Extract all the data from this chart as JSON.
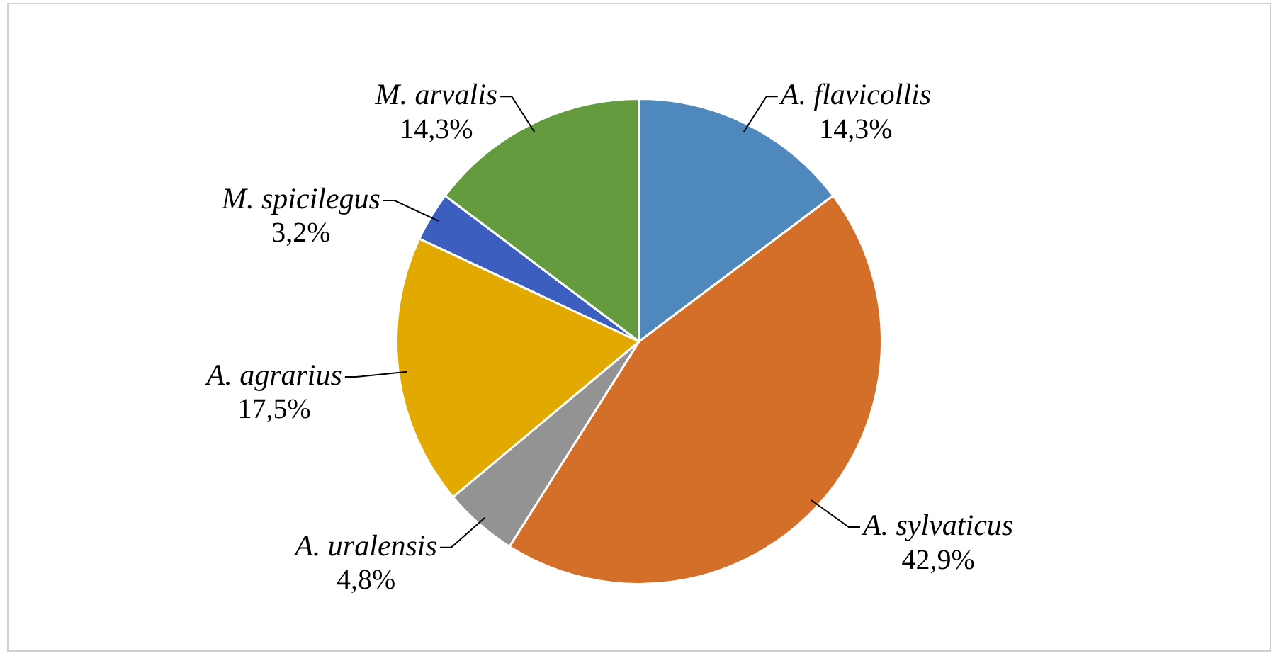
{
  "chart_data": {
    "type": "pie",
    "categories": [
      "A. flavicollis",
      "A. sylvaticus",
      "A. uralensis",
      "A. agrarius",
      "M. spicilegus",
      "M. arvalis"
    ],
    "values": [
      14.3,
      42.9,
      4.8,
      17.5,
      3.2,
      14.3
    ],
    "value_labels": [
      "14,3%",
      "42,9%",
      "4,8%",
      "17,5%",
      "3,2%",
      "14,3%"
    ],
    "colors": [
      "#4f88bd",
      "#d46f2a",
      "#939393",
      "#e2a900",
      "#3b5ebf",
      "#649b3f"
    ],
    "legend": false
  }
}
